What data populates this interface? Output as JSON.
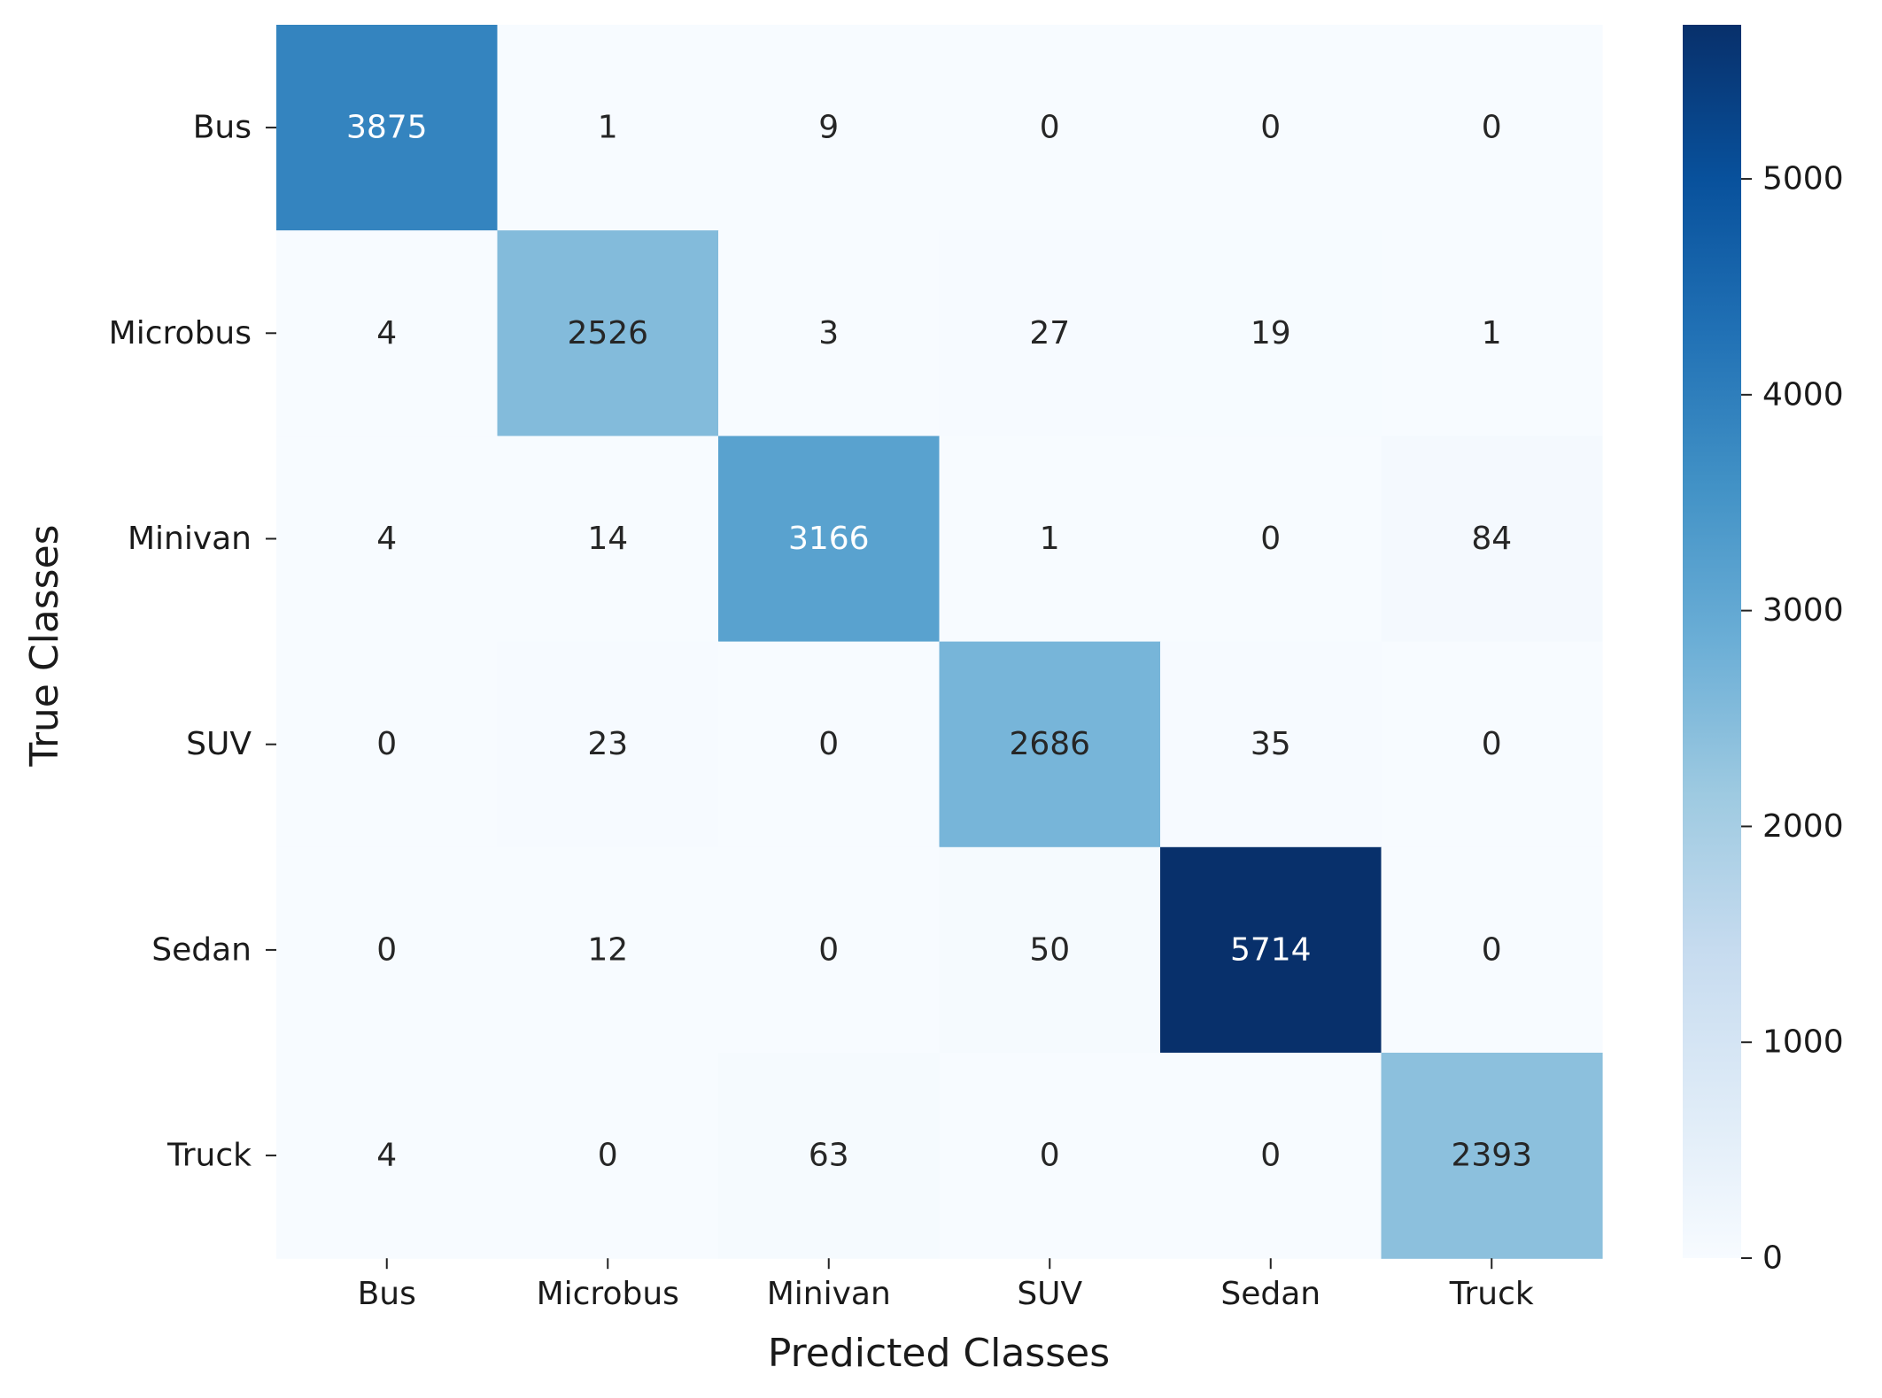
{
  "chart_data": {
    "type": "heatmap",
    "title": "",
    "xlabel": "Predicted Classes",
    "ylabel": "True Classes",
    "x_categories": [
      "Bus",
      "Microbus",
      "Minivan",
      "SUV",
      "Sedan",
      "Truck"
    ],
    "y_categories": [
      "Bus",
      "Microbus",
      "Minivan",
      "SUV",
      "Sedan",
      "Truck"
    ],
    "values": [
      [
        3875,
        1,
        9,
        0,
        0,
        0
      ],
      [
        4,
        2526,
        3,
        27,
        19,
        1
      ],
      [
        4,
        14,
        3166,
        1,
        0,
        84
      ],
      [
        0,
        23,
        0,
        2686,
        35,
        0
      ],
      [
        0,
        12,
        0,
        50,
        5714,
        0
      ],
      [
        4,
        0,
        63,
        0,
        0,
        2393
      ]
    ],
    "colormap": "Blues",
    "color_range": [
      0,
      5714
    ],
    "colorbar_ticks": [
      0,
      1000,
      2000,
      3000,
      4000,
      5000
    ],
    "colorbar_tick_labels": [
      "0",
      "1000",
      "2000",
      "3000",
      "4000",
      "5000"
    ],
    "grid": false,
    "legend": "colorbar-right"
  }
}
